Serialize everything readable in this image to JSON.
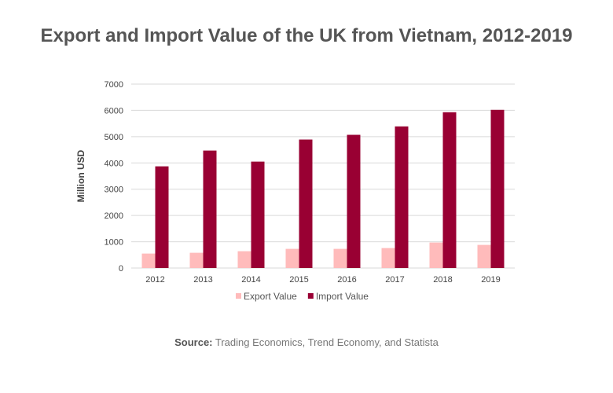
{
  "chart_data": {
    "type": "bar",
    "title": "Export and Import Value of the UK from Vietnam, 2012-2019",
    "xlabel": "",
    "ylabel": "Million USD",
    "ylim": [
      0,
      7000
    ],
    "yticks": [
      0,
      1000,
      2000,
      3000,
      4000,
      5000,
      6000,
      7000
    ],
    "grid": true,
    "legend": "bottom",
    "categories": [
      "2012",
      "2013",
      "2014",
      "2015",
      "2016",
      "2017",
      "2018",
      "2019"
    ],
    "series": [
      {
        "name": "Export Value",
        "color": "#FFBBBB",
        "values": [
          550,
          580,
          640,
          730,
          730,
          760,
          970,
          880
        ]
      },
      {
        "name": "Import Value",
        "color": "#990033",
        "values": [
          3870,
          4470,
          4050,
          4890,
          5070,
          5390,
          5930,
          6020
        ]
      }
    ]
  },
  "source": {
    "label": "Source:",
    "text": " Trading Economics, Trend Economy, and Statista"
  }
}
